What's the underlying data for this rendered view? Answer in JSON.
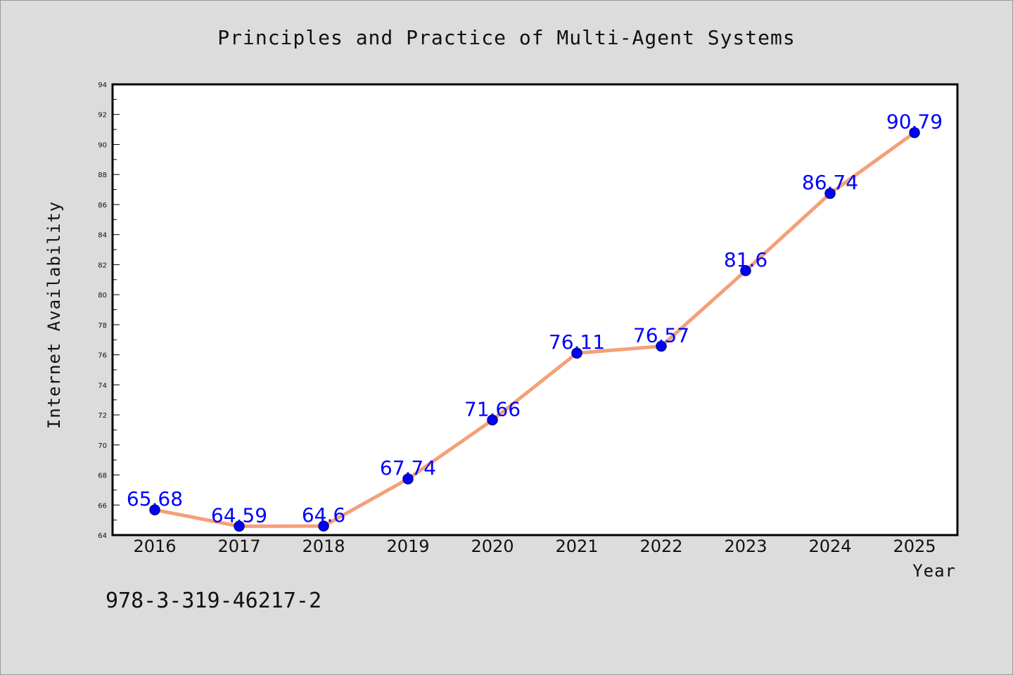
{
  "chart_data": {
    "type": "line",
    "title": "Principles and Practice of Multi-Agent Systems",
    "xlabel": "Year",
    "ylabel": "Internet Availability",
    "categories": [
      "2016",
      "2017",
      "2018",
      "2019",
      "2020",
      "2021",
      "2022",
      "2023",
      "2024",
      "2025"
    ],
    "values": [
      65.68,
      64.59,
      64.6,
      67.74,
      71.66,
      76.11,
      76.57,
      81.6,
      86.74,
      90.79
    ],
    "data_labels": [
      "65.68",
      "64.59",
      "64.6",
      "67.74",
      "71.66",
      "76.11",
      "76.57",
      "81.6",
      "86.74",
      "90.79"
    ],
    "ylim": [
      64,
      94
    ],
    "yticks": [
      64,
      66,
      68,
      70,
      72,
      74,
      76,
      78,
      80,
      82,
      84,
      86,
      88,
      90,
      92,
      94
    ],
    "grid": false,
    "legend": "none",
    "colors": {
      "line": "#f4a07a",
      "marker": "#0000ff",
      "marker_edge": "#000080",
      "data_label": "#0000ff",
      "background": "#dcdcdc",
      "plot_background": "#ffffff"
    }
  },
  "footer": {
    "isbn": "978-3-319-46217-2"
  }
}
